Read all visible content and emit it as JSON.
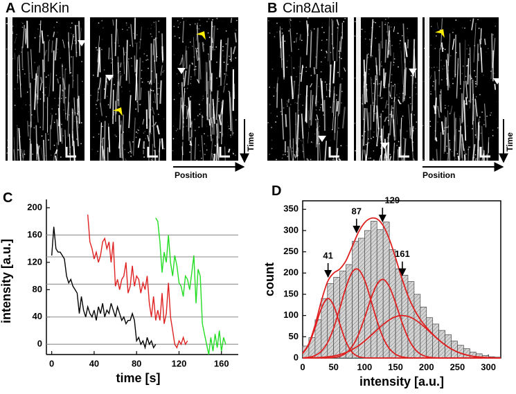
{
  "panels": {
    "A": {
      "label": "A",
      "title": "Cin8Kin",
      "time_label": "Time",
      "position_label": "Position"
    },
    "B": {
      "label": "B",
      "title": "Cin8Δtail",
      "time_label": "Time",
      "position_label": "Position"
    }
  },
  "chart_data": [
    {
      "type": "line",
      "panel_label": "C",
      "xlabel": "time [s]",
      "ylabel": "intensity [a.u.]",
      "xlim": [
        -5,
        168
      ],
      "ylim": [
        -15,
        200
      ],
      "xticks": [
        0,
        40,
        80,
        120,
        160
      ],
      "yticks": [
        0,
        40,
        80,
        120,
        160,
        200
      ],
      "hlines": [
        0,
        40,
        88,
        128,
        160
      ],
      "hline_color": "#a0a0a0",
      "series": [
        {
          "color": "#000000",
          "x": [
            0,
            2,
            4,
            6,
            8,
            10,
            12,
            14,
            16,
            18,
            20,
            22,
            24,
            26,
            28,
            30,
            32,
            34,
            36,
            38,
            40,
            42,
            44,
            46,
            48,
            50,
            52,
            54,
            56,
            58,
            60,
            62,
            64,
            66,
            68,
            70,
            72,
            74,
            76,
            78,
            80,
            82,
            84,
            86,
            88,
            90,
            92,
            94,
            96,
            98
          ],
          "values": [
            130,
            172,
            140,
            135,
            135,
            130,
            125,
            100,
            90,
            95,
            85,
            80,
            75,
            45,
            70,
            50,
            40,
            55,
            45,
            40,
            50,
            35,
            55,
            45,
            60,
            40,
            50,
            45,
            60,
            50,
            40,
            55,
            45,
            35,
            40,
            30,
            35,
            35,
            45,
            35,
            5,
            10,
            0,
            5,
            -5,
            10,
            0,
            5,
            -5,
            0
          ]
        },
        {
          "color": "#e02020",
          "x": [
            34,
            36,
            38,
            40,
            42,
            44,
            46,
            48,
            50,
            52,
            54,
            56,
            58,
            60,
            62,
            64,
            66,
            68,
            70,
            72,
            74,
            76,
            78,
            80,
            82,
            84,
            86,
            88,
            90,
            92,
            94,
            96,
            98,
            100,
            102,
            104,
            106,
            108,
            110,
            112,
            114,
            116,
            118,
            120,
            122,
            124,
            126,
            128
          ],
          "values": [
            190,
            150,
            140,
            125,
            135,
            120,
            130,
            150,
            155,
            140,
            150,
            120,
            150,
            85,
            95,
            80,
            95,
            100,
            120,
            75,
            85,
            115,
            85,
            100,
            95,
            75,
            90,
            80,
            100,
            60,
            40,
            70,
            35,
            50,
            35,
            75,
            30,
            45,
            90,
            40,
            20,
            0,
            -5,
            5,
            0,
            10,
            0,
            5
          ]
        },
        {
          "color": "#22dd22",
          "x": [
            98,
            100,
            102,
            104,
            106,
            108,
            110,
            112,
            114,
            116,
            118,
            120,
            122,
            124,
            126,
            128,
            130,
            132,
            134,
            136,
            138,
            140,
            142,
            144,
            146,
            148,
            150,
            152,
            154,
            156,
            158,
            160,
            162,
            164
          ],
          "values": [
            185,
            180,
            150,
            105,
            135,
            120,
            160,
            120,
            100,
            130,
            115,
            90,
            85,
            70,
            100,
            95,
            80,
            105,
            130,
            60,
            110,
            100,
            30,
            15,
            0,
            -15,
            10,
            -10,
            15,
            -5,
            20,
            -10,
            10,
            0
          ]
        }
      ]
    },
    {
      "type": "histogram",
      "panel_label": "D",
      "xlabel": "intensity [a.u.]",
      "ylabel": "count",
      "xlim": [
        0,
        320
      ],
      "ylim": [
        0,
        370
      ],
      "xticks": [
        0,
        50,
        100,
        150,
        200,
        250,
        300
      ],
      "yticks": [
        0,
        50,
        100,
        150,
        200,
        250,
        300,
        350
      ],
      "bins": [
        0,
        10,
        20,
        30,
        40,
        50,
        60,
        70,
        80,
        90,
        100,
        110,
        120,
        130,
        140,
        150,
        160,
        170,
        180,
        190,
        200,
        210,
        220,
        230,
        240,
        250,
        260,
        270,
        280,
        290,
        300,
        310,
        320
      ],
      "values": [
        28,
        48,
        90,
        140,
        175,
        190,
        205,
        220,
        275,
        282,
        300,
        322,
        302,
        320,
        255,
        210,
        195,
        180,
        150,
        120,
        95,
        80,
        65,
        55,
        40,
        30,
        22,
        14,
        10,
        6,
        3,
        2
      ],
      "color": "#c8c8c8",
      "peak_labels": [
        41,
        87,
        129,
        161
      ],
      "curves": {
        "color": "#e02020",
        "x": [
          0,
          10,
          20,
          30,
          40,
          50,
          60,
          70,
          80,
          90,
          100,
          110,
          120,
          130,
          140,
          150,
          160,
          170,
          180,
          190,
          200,
          210,
          220,
          230,
          240,
          250,
          260,
          270,
          280,
          290,
          300,
          310,
          320
        ],
        "series": [
          {
            "values": [
              10.5,
              31.8,
              70.9,
              116,
              140,
              123.5,
              80.2,
              38.2,
              13.4,
              3.4,
              0.7,
              0.1,
              0,
              0,
              0,
              0,
              0,
              0,
              0,
              0,
              0,
              0,
              0,
              0,
              0,
              0,
              0,
              0,
              0,
              0,
              0,
              0,
              0
            ]
          },
          {
            "values": [
              0.5,
              1.8,
              5.8,
              15.6,
              35.9,
              70.2,
              117,
              166.7,
              201.9,
              208.5,
              183.5,
              137.5,
              87.9,
              47.8,
              22.2,
              8.8,
              3,
              0.8,
              0.2,
              0,
              0,
              0,
              0,
              0,
              0,
              0,
              0,
              0,
              0,
              0,
              0,
              0,
              0
            ]
          },
          {
            "values": [
              0,
              0,
              0,
              0,
              0.3,
              1.3,
              4.1,
              11.5,
              27.1,
              54.8,
              94.4,
              138.6,
              173.4,
              185,
              167.9,
              130,
              85.8,
              48.2,
              23.1,
              9.4,
              3.3,
              1,
              0.3,
              0,
              0,
              0,
              0,
              0,
              0,
              0,
              0,
              0,
              0
            ]
          },
          {
            "values": [
              0.2,
              0.4,
              0.7,
              1.4,
              2.7,
              4.8,
              8.1,
              12.9,
              19.8,
              28.8,
              39.9,
              52.6,
              66,
              78.9,
              89.7,
              97.1,
              100,
              98,
              91.5,
              81.2,
              68.7,
              55.3,
              42.3,
              30.9,
              21.4,
              14.1,
              8.9,
              5.3,
              3,
              1.6,
              0.8,
              0.4,
              0.2
            ]
          },
          {
            "values": [
              11.2,
              34,
              77.4,
              133,
              178.9,
              199.8,
              209.4,
              229.3,
              262.2,
              295.5,
              318.5,
              328.8,
              327.3,
              311.7,
              279.8,
              235.9,
              188.8,
              147,
              114.8,
              90.6,
              72,
              56.3,
              42.6,
              30.9,
              21.4,
              14.1,
              8.9,
              5.3,
              3,
              1.6,
              0.8,
              0.4,
              0.2
            ]
          }
        ]
      }
    }
  ]
}
